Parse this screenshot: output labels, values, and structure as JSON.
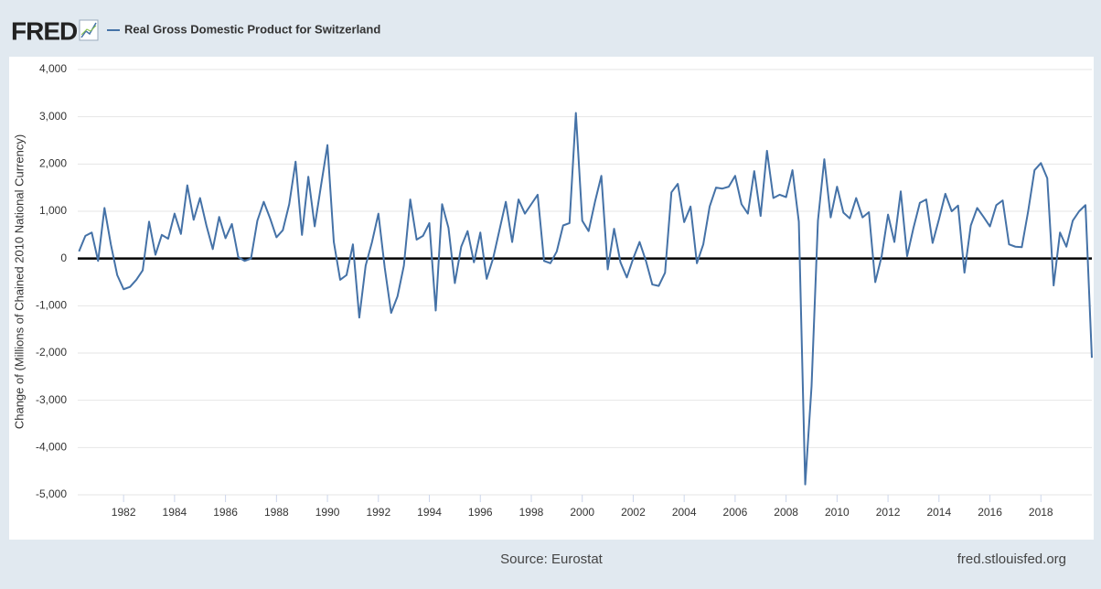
{
  "chart_data": {
    "type": "line",
    "logo": "FRED",
    "y_label": "Change of (Millions of Chained 2010 National Currency)",
    "source": "Source: Eurostat",
    "site": "fred.stlouisfed.org",
    "grid": true,
    "x": [
      1980.25,
      1980.5,
      1980.75,
      1981,
      1981.25,
      1981.5,
      1981.75,
      1982,
      1982.25,
      1982.5,
      1982.75,
      1983,
      1983.25,
      1983.5,
      1983.75,
      1984,
      1984.25,
      1984.5,
      1984.75,
      1985,
      1985.25,
      1985.5,
      1985.75,
      1986,
      1986.25,
      1986.5,
      1986.75,
      1987,
      1987.25,
      1987.5,
      1987.75,
      1988,
      1988.25,
      1988.5,
      1988.75,
      1989,
      1989.25,
      1989.5,
      1989.75,
      1990,
      1990.25,
      1990.5,
      1990.75,
      1991,
      1991.25,
      1991.5,
      1991.75,
      1992,
      1992.25,
      1992.5,
      1992.75,
      1993,
      1993.25,
      1993.5,
      1993.75,
      1994,
      1994.25,
      1994.5,
      1994.75,
      1995,
      1995.25,
      1995.5,
      1995.75,
      1996,
      1996.25,
      1996.5,
      1996.75,
      1997,
      1997.25,
      1997.5,
      1997.75,
      1998,
      1998.25,
      1998.5,
      1998.75,
      1999,
      1999.25,
      1999.5,
      1999.75,
      2000,
      2000.25,
      2000.5,
      2000.75,
      2001,
      2001.25,
      2001.5,
      2001.75,
      2002,
      2002.25,
      2002.5,
      2002.75,
      2003,
      2003.25,
      2003.5,
      2003.75,
      2004,
      2004.25,
      2004.5,
      2004.75,
      2005,
      2005.25,
      2005.5,
      2005.75,
      2006,
      2006.25,
      2006.5,
      2006.75,
      2007,
      2007.25,
      2007.5,
      2007.75,
      2008,
      2008.25,
      2008.5,
      2008.75,
      2009,
      2009.25,
      2009.5,
      2009.75,
      2010,
      2010.25,
      2010.5,
      2010.75,
      2011,
      2011.25,
      2011.5,
      2011.75,
      2012,
      2012.25,
      2012.5,
      2012.75,
      2013,
      2013.25,
      2013.5,
      2013.75,
      2014,
      2014.25,
      2014.5,
      2014.75,
      2015,
      2015.25,
      2015.5,
      2015.75,
      2016,
      2016.25,
      2016.5,
      2016.75,
      2017,
      2017.25,
      2017.5,
      2017.75,
      2018,
      2018.25,
      2018.5,
      2018.75,
      2019,
      2019.25,
      2019.5,
      2019.75,
      2020
    ],
    "series": [
      {
        "name": "Real Gross Domestic Product for Switzerland",
        "color": "#4572a7",
        "values": [
          150,
          480,
          550,
          -50,
          1070,
          300,
          -350,
          -650,
          -600,
          -450,
          -250,
          780,
          80,
          500,
          420,
          950,
          520,
          1550,
          820,
          1280,
          700,
          200,
          880,
          430,
          730,
          30,
          -50,
          0,
          800,
          1200,
          850,
          450,
          600,
          1150,
          2050,
          500,
          1730,
          680,
          1550,
          2400,
          350,
          -450,
          -350,
          300,
          -1250,
          -150,
          350,
          950,
          -200,
          -1150,
          -800,
          -150,
          1250,
          400,
          480,
          750,
          -1100,
          1150,
          650,
          -520,
          250,
          580,
          -80,
          550,
          -430,
          0,
          600,
          1200,
          350,
          1250,
          950,
          1150,
          1350,
          -50,
          -100,
          150,
          700,
          750,
          3080,
          800,
          580,
          1200,
          1750,
          -230,
          630,
          -80,
          -400,
          0,
          350,
          -50,
          -550,
          -580,
          -300,
          1400,
          1580,
          770,
          1100,
          -100,
          300,
          1100,
          1500,
          1480,
          1520,
          1750,
          1150,
          950,
          1850,
          900,
          2280,
          1280,
          1350,
          1300,
          1870,
          780,
          -4780,
          -2700,
          800,
          2100,
          870,
          1520,
          970,
          850,
          1280,
          870,
          980,
          -500,
          50,
          930,
          350,
          1420,
          50,
          650,
          1180,
          1250,
          330,
          830,
          1370,
          1000,
          1120,
          -300,
          700,
          1070,
          880,
          680,
          1130,
          1230,
          300,
          250,
          240,
          1000,
          1870,
          2020,
          1700,
          -570,
          550,
          250,
          800,
          1000,
          1130,
          -2100
        ]
      }
    ],
    "xlim": [
      1980.2,
      2020
    ],
    "xticks": [
      1982,
      1984,
      1986,
      1988,
      1990,
      1992,
      1994,
      1996,
      1998,
      2000,
      2002,
      2004,
      2006,
      2008,
      2010,
      2012,
      2014,
      2016,
      2018
    ],
    "ylim": [
      -5000,
      4000
    ],
    "yticks": [
      {
        "value": -5000,
        "label": "-5,000"
      },
      {
        "value": -4000,
        "label": "-4,000"
      },
      {
        "value": -3000,
        "label": "-3,000"
      },
      {
        "value": -2000,
        "label": "-2,000"
      },
      {
        "value": -1000,
        "label": "-1,000"
      },
      0,
      {
        "value": 1000,
        "label": "1,000"
      },
      {
        "value": 2000,
        "label": "2,000"
      },
      {
        "value": 3000,
        "label": "3,000"
      },
      {
        "value": 4000,
        "label": "4,000"
      }
    ]
  }
}
